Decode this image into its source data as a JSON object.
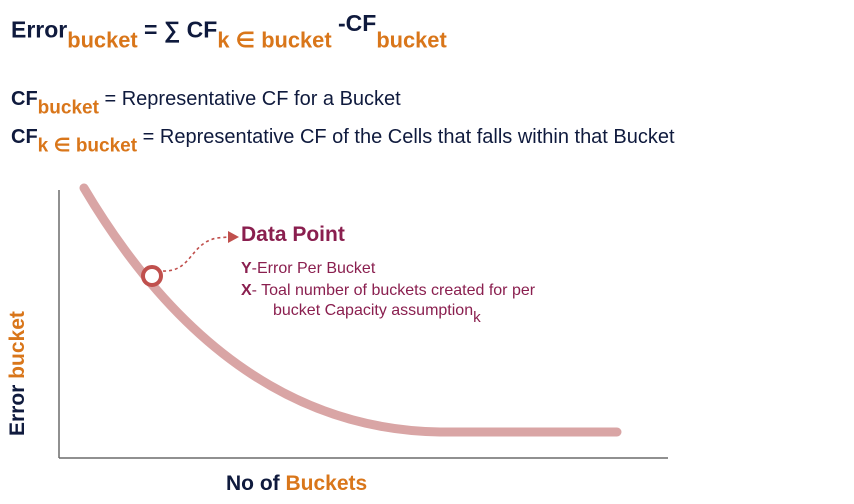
{
  "formula": {
    "error": "Error",
    "sub_bucket": "bucket",
    "equals_sum": "= ∑ CF",
    "sub_k_in_bucket": "k ∈ bucket",
    "minus_cf": "-CF",
    "sub_bucket_2": "bucket"
  },
  "definitions": [
    {
      "symbol": "CF",
      "subscript": "bucket",
      "text": "= Representative CF for a Bucket"
    },
    {
      "symbol": "CF",
      "subscript": "k ∈ bucket",
      "text": "= Representative CF of the Cells that falls within that Bucket"
    }
  ],
  "annotation": {
    "title": "Data Point",
    "y_prefix": "Y",
    "y_text": "-Error Per Bucket",
    "x_prefix": "X",
    "x_text": "- Toal number of buckets created for per",
    "x_text_2": "bucket Capacity assumption",
    "x_text_2_sub": "k"
  },
  "axes": {
    "x_label_a": "No of ",
    "x_label_b": "Buckets",
    "y_label_a": "Error ",
    "y_label_b": "bucket"
  },
  "colors": {
    "navy": "#0f1a3d",
    "orange": "#d9761a",
    "maroon": "#8a1f4f",
    "curve": "#d9a5a5",
    "marker": "#c0504d"
  }
}
